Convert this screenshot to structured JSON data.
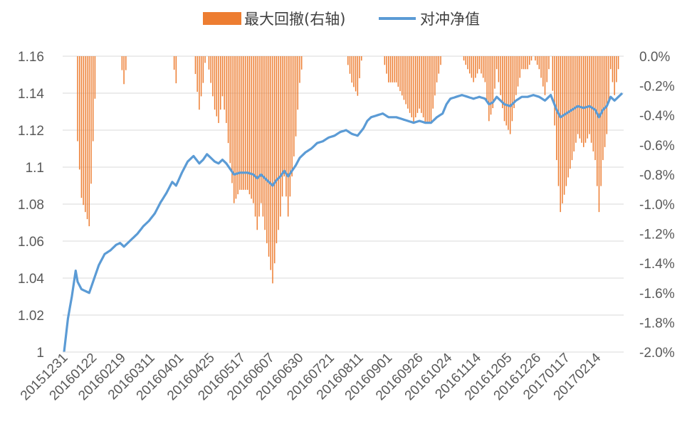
{
  "chart_data": {
    "type": "line",
    "legend": [
      {
        "name": "最大回撤(右轴)",
        "kind": "bar",
        "color": "#ED7D31"
      },
      {
        "name": "对冲净值",
        "kind": "line",
        "color": "#5B9BD5"
      }
    ],
    "legend_position": "top-center",
    "grid": true,
    "y_left": {
      "min": 1.0,
      "max": 1.16,
      "ticks": [
        "1",
        "1.02",
        "1.04",
        "1.06",
        "1.08",
        "1.1",
        "1.12",
        "1.14",
        "1.16"
      ]
    },
    "y_right": {
      "min": -2.0,
      "max": 0.0,
      "unit": "%",
      "ticks": [
        "-2.0%",
        "-1.8%",
        "-1.6%",
        "-1.4%",
        "-1.2%",
        "-1.0%",
        "-0.8%",
        "-0.6%",
        "-0.4%",
        "-0.2%",
        "0.0%"
      ]
    },
    "x_ticks": [
      {
        "label": "20151231",
        "index": 0
      },
      {
        "label": "20160122",
        "index": 15
      },
      {
        "label": "20160219",
        "index": 30
      },
      {
        "label": "20160311",
        "index": 45
      },
      {
        "label": "20160401",
        "index": 60
      },
      {
        "label": "20160425",
        "index": 76
      },
      {
        "label": "20160517",
        "index": 92
      },
      {
        "label": "20160607",
        "index": 107
      },
      {
        "label": "20160630",
        "index": 122
      },
      {
        "label": "20160721",
        "index": 138
      },
      {
        "label": "20160811",
        "index": 153
      },
      {
        "label": "20160901",
        "index": 168
      },
      {
        "label": "20160926",
        "index": 184
      },
      {
        "label": "20161024",
        "index": 199
      },
      {
        "label": "20161114",
        "index": 214
      },
      {
        "label": "20161205",
        "index": 230
      },
      {
        "label": "20161226",
        "index": 245
      },
      {
        "label": "20170117",
        "index": 260
      },
      {
        "label": "20170214",
        "index": 276
      }
    ],
    "n_points": 290,
    "nav_anchors": [
      [
        0,
        1.0
      ],
      [
        2,
        1.018
      ],
      [
        4,
        1.03
      ],
      [
        6,
        1.044
      ],
      [
        7,
        1.038
      ],
      [
        9,
        1.034
      ],
      [
        11,
        1.033
      ],
      [
        13,
        1.032
      ],
      [
        15,
        1.038
      ],
      [
        18,
        1.047
      ],
      [
        21,
        1.053
      ],
      [
        24,
        1.055
      ],
      [
        27,
        1.058
      ],
      [
        29,
        1.059
      ],
      [
        31,
        1.057
      ],
      [
        33,
        1.059
      ],
      [
        35,
        1.061
      ],
      [
        38,
        1.064
      ],
      [
        41,
        1.068
      ],
      [
        44,
        1.071
      ],
      [
        47,
        1.075
      ],
      [
        50,
        1.081
      ],
      [
        53,
        1.086
      ],
      [
        56,
        1.092
      ],
      [
        58,
        1.09
      ],
      [
        61,
        1.097
      ],
      [
        64,
        1.103
      ],
      [
        67,
        1.106
      ],
      [
        70,
        1.102
      ],
      [
        72,
        1.104
      ],
      [
        74,
        1.107
      ],
      [
        76,
        1.105
      ],
      [
        78,
        1.103
      ],
      [
        80,
        1.102
      ],
      [
        82,
        1.104
      ],
      [
        84,
        1.102
      ],
      [
        86,
        1.099
      ],
      [
        88,
        1.096
      ],
      [
        91,
        1.097
      ],
      [
        95,
        1.097
      ],
      [
        98,
        1.096
      ],
      [
        100,
        1.094
      ],
      [
        102,
        1.096
      ],
      [
        104,
        1.094
      ],
      [
        106,
        1.092
      ],
      [
        108,
        1.09
      ],
      [
        110,
        1.093
      ],
      [
        112,
        1.095
      ],
      [
        114,
        1.098
      ],
      [
        116,
        1.095
      ],
      [
        118,
        1.098
      ],
      [
        120,
        1.101
      ],
      [
        122,
        1.105
      ],
      [
        125,
        1.108
      ],
      [
        128,
        1.11
      ],
      [
        131,
        1.113
      ],
      [
        134,
        1.114
      ],
      [
        137,
        1.116
      ],
      [
        140,
        1.117
      ],
      [
        143,
        1.119
      ],
      [
        146,
        1.12
      ],
      [
        149,
        1.118
      ],
      [
        152,
        1.117
      ],
      [
        155,
        1.121
      ],
      [
        157,
        1.125
      ],
      [
        159,
        1.127
      ],
      [
        162,
        1.128
      ],
      [
        165,
        1.129
      ],
      [
        168,
        1.127
      ],
      [
        172,
        1.127
      ],
      [
        175,
        1.126
      ],
      [
        178,
        1.125
      ],
      [
        181,
        1.124
      ],
      [
        184,
        1.125
      ],
      [
        187,
        1.124
      ],
      [
        190,
        1.124
      ],
      [
        193,
        1.127
      ],
      [
        196,
        1.129
      ],
      [
        198,
        1.134
      ],
      [
        200,
        1.137
      ],
      [
        203,
        1.138
      ],
      [
        206,
        1.139
      ],
      [
        209,
        1.138
      ],
      [
        212,
        1.137
      ],
      [
        215,
        1.138
      ],
      [
        218,
        1.137
      ],
      [
        220,
        1.134
      ],
      [
        222,
        1.135
      ],
      [
        224,
        1.138
      ],
      [
        226,
        1.136
      ],
      [
        228,
        1.134
      ],
      [
        231,
        1.133
      ],
      [
        234,
        1.136
      ],
      [
        237,
        1.138
      ],
      [
        240,
        1.138
      ],
      [
        243,
        1.139
      ],
      [
        246,
        1.138
      ],
      [
        249,
        1.136
      ],
      [
        252,
        1.139
      ],
      [
        255,
        1.131
      ],
      [
        257,
        1.127
      ],
      [
        260,
        1.129
      ],
      [
        263,
        1.131
      ],
      [
        266,
        1.133
      ],
      [
        269,
        1.132
      ],
      [
        272,
        1.133
      ],
      [
        275,
        1.131
      ],
      [
        277,
        1.127
      ],
      [
        279,
        1.131
      ],
      [
        281,
        1.133
      ],
      [
        283,
        1.138
      ],
      [
        285,
        1.136
      ],
      [
        287,
        1.138
      ],
      [
        289,
        1.14
      ]
    ],
    "drawdown_note": "最大回撤 bars derived as running drawdown of 对冲净值 from its prior peak, in percent (right axis)."
  }
}
